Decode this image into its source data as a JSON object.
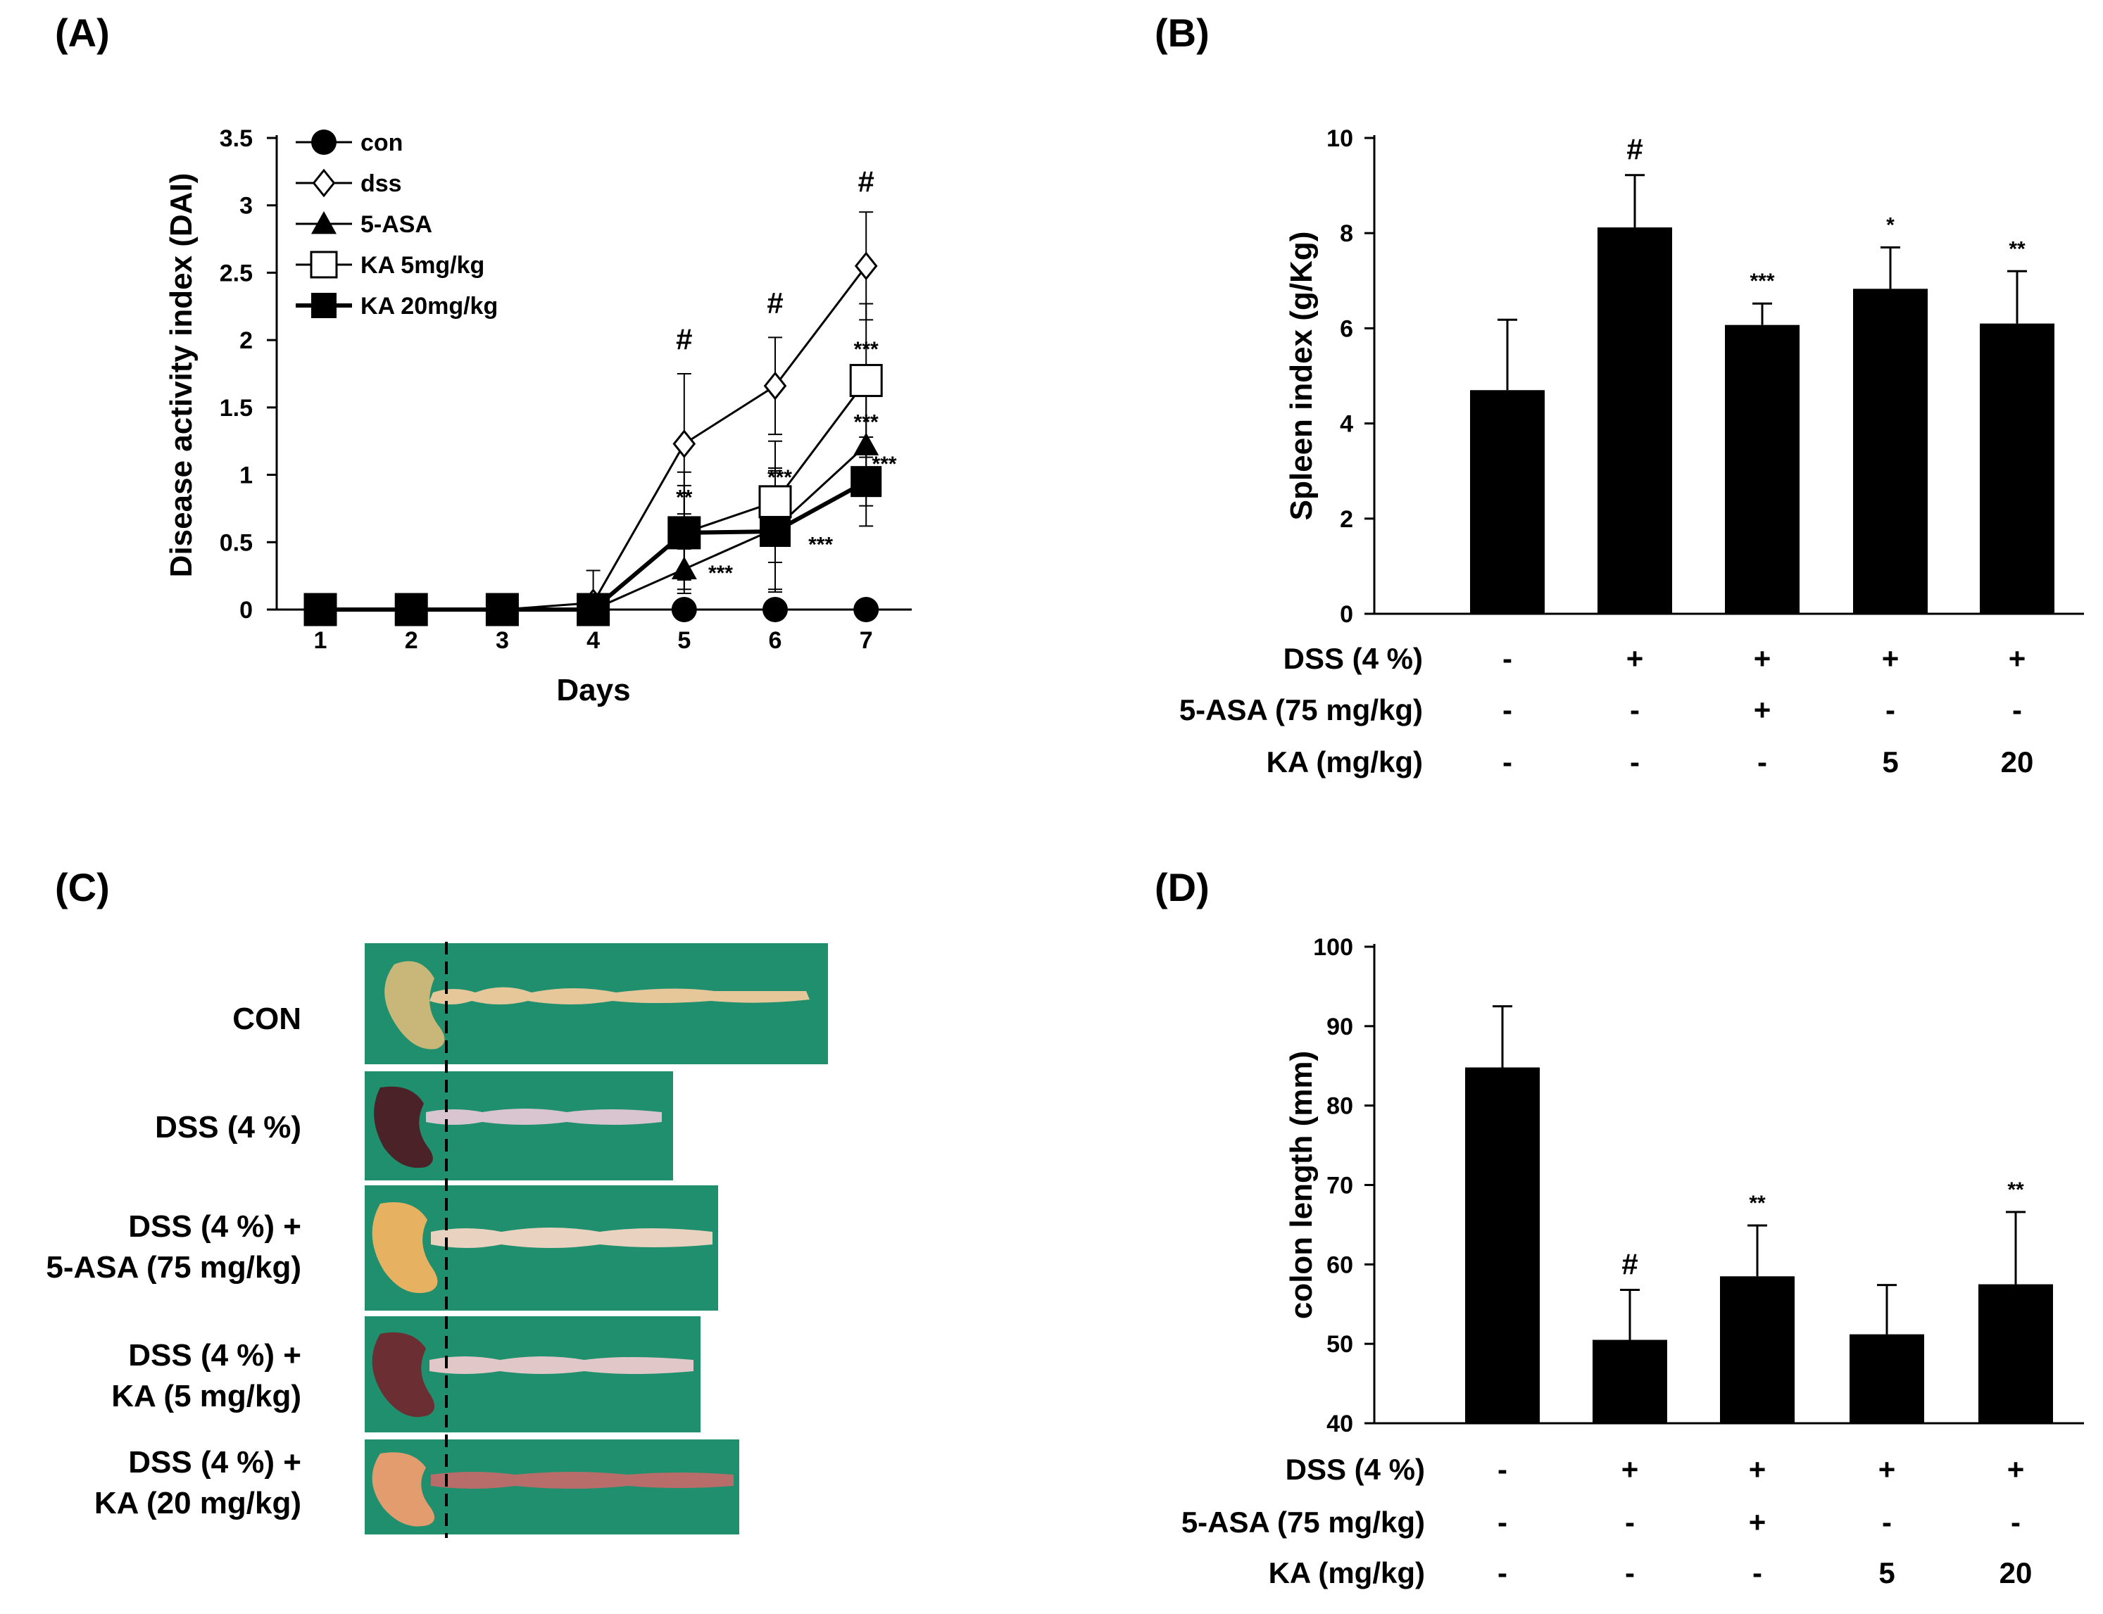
{
  "panels": {
    "A": "(A)",
    "B": "(B)",
    "C": "(C)",
    "D": "(D)"
  },
  "chart_data": [
    {
      "id": "A",
      "type": "line",
      "xlabel": "Days",
      "ylabel": "Disease activity index (DAI)",
      "x": [
        1,
        2,
        3,
        4,
        5,
        6,
        7
      ],
      "xticks": [
        "1",
        "2",
        "3",
        "4",
        "5",
        "6",
        "7"
      ],
      "ylim": [
        0,
        3.5
      ],
      "yticks": [
        "0",
        "0.5",
        "1",
        "1.5",
        "2",
        "2.5",
        "3",
        "3.5"
      ],
      "series": [
        {
          "name": "con",
          "marker": "circle-filled",
          "values": [
            0,
            0,
            0,
            0,
            0,
            0,
            0
          ],
          "errors": [
            0,
            0,
            0,
            0,
            0,
            0,
            0
          ]
        },
        {
          "name": "dss",
          "marker": "diamond-open",
          "values": [
            0,
            0,
            0,
            0.05,
            1.23,
            1.66,
            2.55
          ],
          "errors": [
            0,
            0,
            0,
            0.24,
            0.52,
            0.36,
            0.4
          ]
        },
        {
          "name": "5-ASA",
          "marker": "triangle-filled",
          "values": [
            0,
            0,
            0,
            0,
            0.3,
            0.6,
            1.22
          ],
          "errors": [
            0,
            0,
            0,
            0,
            0.15,
            0.45,
            0.45
          ]
        },
        {
          "name": "KA 5mg/kg",
          "marker": "square-open",
          "values": [
            0,
            0,
            0,
            0,
            0.57,
            0.8,
            1.7
          ],
          "errors": [
            0,
            0,
            0,
            0,
            0.45,
            0.45,
            0.57
          ]
        },
        {
          "name": "KA 20mg/kg",
          "marker": "square-filled",
          "values": [
            0,
            0,
            0,
            0,
            0.57,
            0.58,
            0.95
          ],
          "errors": [
            0,
            0,
            0,
            0,
            0.35,
            0.45,
            0.33
          ]
        }
      ],
      "annotations": [
        {
          "x": 5,
          "y": 1.93,
          "text": "#"
        },
        {
          "x": 6,
          "y": 2.2,
          "text": "#"
        },
        {
          "x": 7,
          "y": 3.1,
          "text": "#"
        },
        {
          "x": 5,
          "y": 0.78,
          "text": "**"
        },
        {
          "x": 5.4,
          "y": 0.22,
          "text": "***"
        },
        {
          "x": 6.05,
          "y": 0.93,
          "text": "***"
        },
        {
          "x": 6.5,
          "y": 0.43,
          "text": "***"
        },
        {
          "x": 7,
          "y": 1.88,
          "text": "***"
        },
        {
          "x": 7,
          "y": 1.34,
          "text": "***"
        },
        {
          "x": 7.2,
          "y": 1.03,
          "text": "***"
        }
      ]
    },
    {
      "id": "B",
      "type": "bar",
      "ylabel": "Spleen index (g/Kg)",
      "ylim": [
        0,
        10
      ],
      "yticks": [
        "0",
        "2",
        "4",
        "6",
        "8",
        "10"
      ],
      "values": [
        4.7,
        8.12,
        6.07,
        6.83,
        6.1
      ],
      "errors": [
        1.48,
        1.1,
        0.45,
        0.87,
        1.1
      ],
      "significance": [
        "",
        "#",
        "***",
        "*",
        "**"
      ],
      "conditions": [
        {
          "label": "DSS (4 %)",
          "values": [
            "-",
            "+",
            "+",
            "+",
            "+"
          ]
        },
        {
          "label": "5-ASA (75 mg/kg)",
          "values": [
            "-",
            "-",
            "+",
            "-",
            "-"
          ]
        },
        {
          "label": "KA (mg/kg)",
          "values": [
            "-",
            "-",
            "-",
            "5",
            "20"
          ]
        }
      ]
    },
    {
      "id": "D",
      "type": "bar",
      "ylabel": "colon length (mm)",
      "ylim": [
        40,
        100
      ],
      "yticks": [
        "40",
        "50",
        "60",
        "70",
        "80",
        "90",
        "100"
      ],
      "values": [
        84.8,
        50.5,
        58.5,
        51.2,
        57.5
      ],
      "errors": [
        7.7,
        6.3,
        6.4,
        6.2,
        9.1
      ],
      "significance": [
        "",
        "#",
        "**",
        "",
        "**"
      ],
      "conditions": [
        {
          "label": "DSS (4 %)",
          "values": [
            "-",
            "+",
            "+",
            "+",
            "+"
          ]
        },
        {
          "label": "5-ASA (75 mg/kg)",
          "values": [
            "-",
            "-",
            "+",
            "-",
            "-"
          ]
        },
        {
          "label": "KA (mg/kg)",
          "values": [
            "-",
            "-",
            "-",
            "5",
            "20"
          ]
        }
      ]
    }
  ],
  "photo_panel": {
    "rows": [
      {
        "lines": [
          "CON"
        ]
      },
      {
        "lines": [
          "DSS (4 %)"
        ]
      },
      {
        "lines": [
          "DSS (4 %)  +",
          "5-ASA (75 mg/kg)"
        ]
      },
      {
        "lines": [
          "DSS (4 %)  +",
          "KA (5 mg/kg)"
        ]
      },
      {
        "lines": [
          "DSS (4 %)  +",
          "KA (20 mg/kg)"
        ]
      }
    ],
    "colors": {
      "background": "#1f8f6e",
      "tissue_light": "#e9d6b8",
      "tissue_dark": "#5a2a2e"
    }
  }
}
